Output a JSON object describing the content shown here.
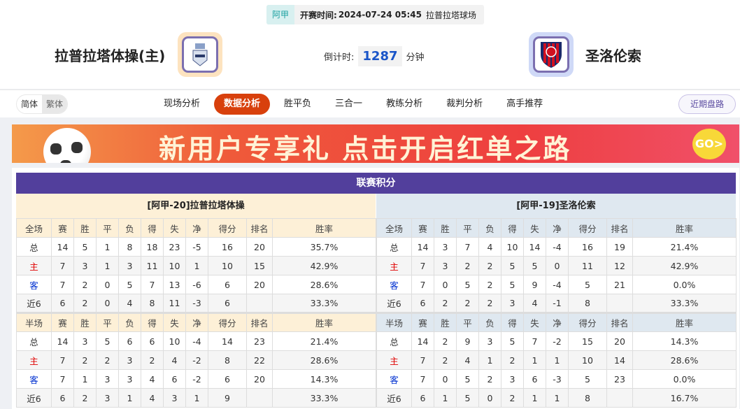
{
  "match": {
    "league": "阿甲",
    "time_label": "开赛时间:",
    "time": "2024-07-24 05:45",
    "venue": "拉普拉塔球场"
  },
  "home": {
    "name": "拉普拉塔体操(主)"
  },
  "away": {
    "name": "圣洛伦索"
  },
  "countdown": {
    "label": "倒计时:",
    "value": "1287",
    "unit": "分钟"
  },
  "lang": {
    "simplified": "简体",
    "traditional": "繁体"
  },
  "tabs": [
    "现场分析",
    "数据分析",
    "胜平负",
    "三合一",
    "教练分析",
    "裁判分析",
    "高手推荐"
  ],
  "active_tab": "数据分析",
  "recent_button": "近期盘路",
  "banner": {
    "text": "新用户专享礼  点击开启红单之路",
    "go": "GO>"
  },
  "standings": {
    "title": "联赛积分",
    "columns_full": [
      "全场",
      "赛",
      "胜",
      "平",
      "负",
      "得",
      "失",
      "净",
      "得分",
      "排名",
      "胜率"
    ],
    "columns_half": [
      "半场",
      "赛",
      "胜",
      "平",
      "负",
      "得",
      "失",
      "净",
      "得分",
      "排名",
      "胜率"
    ],
    "teams": [
      {
        "header": "[阿甲-20]拉普拉塔体操",
        "full": [
          [
            "总",
            "14",
            "5",
            "1",
            "8",
            "18",
            "23",
            "-5",
            "16",
            "20",
            "35.7%"
          ],
          [
            "主",
            "7",
            "3",
            "1",
            "3",
            "11",
            "10",
            "1",
            "10",
            "15",
            "42.9%"
          ],
          [
            "客",
            "7",
            "2",
            "0",
            "5",
            "7",
            "13",
            "-6",
            "6",
            "20",
            "28.6%"
          ],
          [
            "近6",
            "6",
            "2",
            "0",
            "4",
            "8",
            "11",
            "-3",
            "6",
            "",
            "33.3%"
          ]
        ],
        "half": [
          [
            "总",
            "14",
            "3",
            "5",
            "6",
            "6",
            "10",
            "-4",
            "14",
            "23",
            "21.4%"
          ],
          [
            "主",
            "7",
            "2",
            "2",
            "3",
            "2",
            "4",
            "-2",
            "8",
            "22",
            "28.6%"
          ],
          [
            "客",
            "7",
            "1",
            "3",
            "3",
            "4",
            "6",
            "-2",
            "6",
            "20",
            "14.3%"
          ],
          [
            "近6",
            "6",
            "2",
            "3",
            "1",
            "4",
            "3",
            "1",
            "9",
            "",
            "33.3%"
          ]
        ]
      },
      {
        "header": "[阿甲-19]圣洛伦索",
        "full": [
          [
            "总",
            "14",
            "3",
            "7",
            "4",
            "10",
            "14",
            "-4",
            "16",
            "19",
            "21.4%"
          ],
          [
            "主",
            "7",
            "3",
            "2",
            "2",
            "5",
            "5",
            "0",
            "11",
            "12",
            "42.9%"
          ],
          [
            "客",
            "7",
            "0",
            "5",
            "2",
            "5",
            "9",
            "-4",
            "5",
            "21",
            "0.0%"
          ],
          [
            "近6",
            "6",
            "2",
            "2",
            "2",
            "3",
            "4",
            "-1",
            "8",
            "",
            "33.3%"
          ]
        ],
        "half": [
          [
            "总",
            "14",
            "2",
            "9",
            "3",
            "5",
            "7",
            "-2",
            "15",
            "20",
            "14.3%"
          ],
          [
            "主",
            "7",
            "2",
            "4",
            "1",
            "2",
            "1",
            "1",
            "10",
            "14",
            "28.6%"
          ],
          [
            "客",
            "7",
            "0",
            "5",
            "2",
            "3",
            "6",
            "-3",
            "5",
            "23",
            "0.0%"
          ],
          [
            "近6",
            "6",
            "1",
            "5",
            "0",
            "2",
            "1",
            "1",
            "8",
            "",
            "16.7%"
          ]
        ]
      }
    ]
  },
  "colors": {
    "title_bar": "#523f9c",
    "active_tab": "#d8400c",
    "home_header": "#fdf0d7",
    "away_header": "#dfe8f0",
    "home_label": "#e00000",
    "away_label": "#0030d0",
    "countdown": "#1a55c8"
  }
}
